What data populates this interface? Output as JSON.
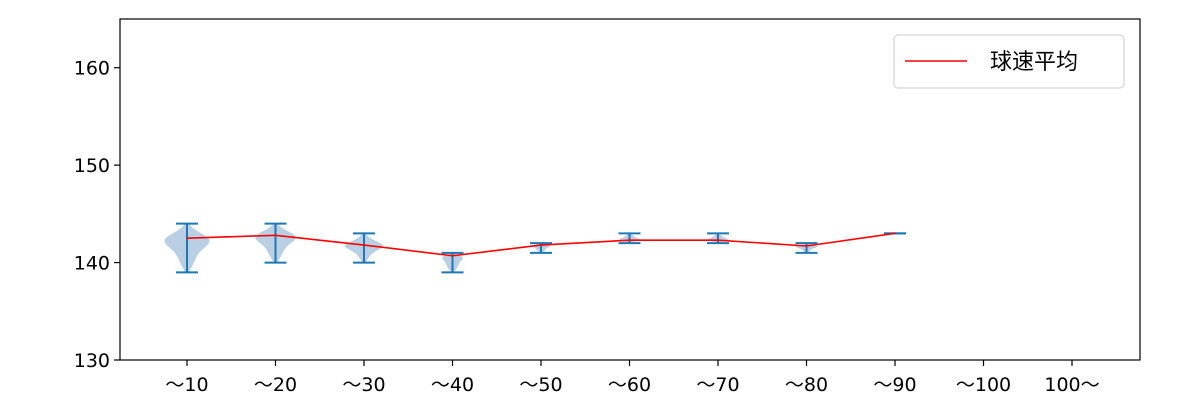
{
  "chart_data": {
    "type": "violin",
    "title": "",
    "xlabel": "",
    "ylabel": "",
    "ylim": [
      130,
      165
    ],
    "yticks": [
      130,
      140,
      150,
      160
    ],
    "categories": [
      "～10",
      "～20",
      "～30",
      "～40",
      "～50",
      "～60",
      "～70",
      "～80",
      "～90",
      "～100",
      "100～"
    ],
    "series": [
      {
        "name": "球速平均",
        "color": "#ff0000",
        "values": [
          142.5,
          142.8,
          141.8,
          140.7,
          141.8,
          142.3,
          142.3,
          141.7,
          143.0
        ]
      }
    ],
    "distributions": [
      {
        "category": "～10",
        "min": 139,
        "max": 144
      },
      {
        "category": "～20",
        "min": 140,
        "max": 144
      },
      {
        "category": "～30",
        "min": 140,
        "max": 143
      },
      {
        "category": "～40",
        "min": 139,
        "max": 141
      },
      {
        "category": "～50",
        "min": 141,
        "max": 142
      },
      {
        "category": "～60",
        "min": 142,
        "max": 143
      },
      {
        "category": "～70",
        "min": 142,
        "max": 143
      },
      {
        "category": "～80",
        "min": 141,
        "max": 142
      },
      {
        "category": "～90",
        "min": 143,
        "max": 143
      }
    ],
    "legend": {
      "position": "top-right"
    },
    "grid": false,
    "colors": {
      "violin": "#b9cfe4",
      "whisker": "#1f77b4",
      "mean": "#ff0000",
      "axis": "#000000"
    }
  }
}
